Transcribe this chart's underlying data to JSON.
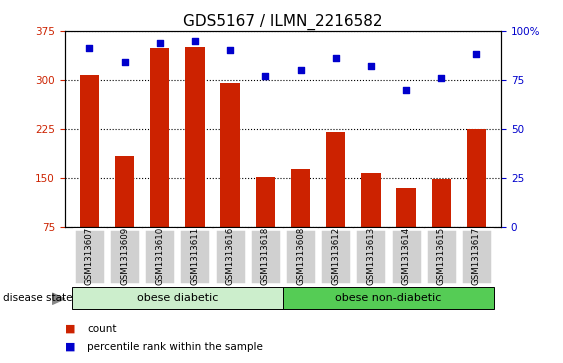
{
  "title": "GDS5167 / ILMN_2216582",
  "samples": [
    "GSM1313607",
    "GSM1313609",
    "GSM1313610",
    "GSM1313611",
    "GSM1313616",
    "GSM1313618",
    "GSM1313608",
    "GSM1313612",
    "GSM1313613",
    "GSM1313614",
    "GSM1313615",
    "GSM1313617"
  ],
  "counts": [
    308,
    183,
    348,
    350,
    295,
    152,
    163,
    220,
    157,
    135,
    148,
    225
  ],
  "percentiles": [
    91,
    84,
    94,
    95,
    90,
    77,
    80,
    86,
    82,
    70,
    76,
    88
  ],
  "ylim_left": [
    75,
    375
  ],
  "ylim_right": [
    0,
    100
  ],
  "yticks_left": [
    75,
    150,
    225,
    300,
    375
  ],
  "yticks_right": [
    0,
    25,
    50,
    75,
    100
  ],
  "bar_color": "#cc2200",
  "dot_color": "#0000cc",
  "group1_label": "obese diabetic",
  "group2_label": "obese non-diabetic",
  "group1_indices": [
    0,
    1,
    2,
    3,
    4,
    5
  ],
  "group2_indices": [
    6,
    7,
    8,
    9,
    10,
    11
  ],
  "disease_state_label": "disease state",
  "legend_count": "count",
  "legend_percentile": "percentile rank within the sample",
  "bg_color_light": "#cceecc",
  "bg_color_dark": "#55cc55",
  "tick_bg_color": "#d0d0d0",
  "title_fontsize": 11,
  "tick_fontsize": 7.5,
  "label_fontsize": 8
}
